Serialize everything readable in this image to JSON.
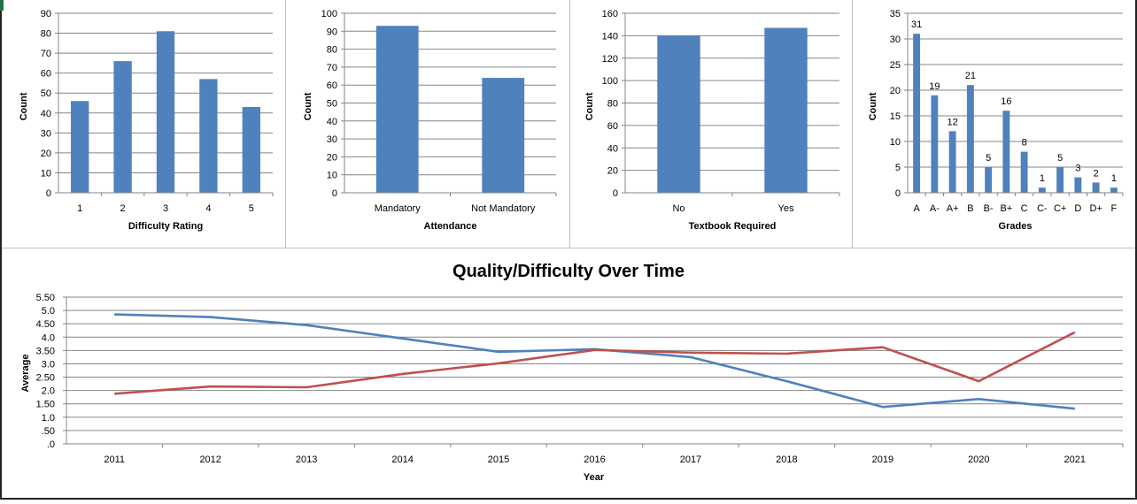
{
  "colors": {
    "bar": "#4f81bd",
    "grid": "#868686",
    "series_blue": "#4f81bd",
    "series_red": "#c0504d"
  },
  "chart_data": [
    {
      "type": "bar",
      "categories": [
        "1",
        "2",
        "3",
        "4",
        "5"
      ],
      "values": [
        46,
        66,
        81,
        57,
        43
      ],
      "xlabel": "Difficulty Rating",
      "ylabel": "Count",
      "ylim": [
        0,
        90
      ],
      "yticks": [
        "0",
        "10",
        "20",
        "30",
        "40",
        "50",
        "60",
        "70",
        "80",
        "90"
      ],
      "grid": true
    },
    {
      "type": "bar",
      "categories": [
        "Mandatory",
        "Not Mandatory"
      ],
      "values": [
        93,
        64
      ],
      "xlabel": "Attendance",
      "ylabel": "Count",
      "ylim": [
        0,
        100
      ],
      "yticks": [
        "0",
        "10",
        "20",
        "30",
        "40",
        "50",
        "60",
        "70",
        "80",
        "90",
        "100"
      ],
      "grid": true
    },
    {
      "type": "bar",
      "categories": [
        "No",
        "Yes"
      ],
      "values": [
        140,
        147
      ],
      "xlabel": "Textbook Required",
      "ylabel": "Count",
      "ylim": [
        0,
        160
      ],
      "yticks": [
        "0",
        "20",
        "40",
        "60",
        "80",
        "100",
        "120",
        "140",
        "160"
      ],
      "grid": true
    },
    {
      "type": "bar",
      "categories": [
        "A",
        "A-",
        "A+",
        "B",
        "B-",
        "B+",
        "C",
        "C-",
        "C+",
        "D",
        "D+",
        "F"
      ],
      "values": [
        31,
        19,
        12,
        21,
        5,
        16,
        8,
        1,
        5,
        3,
        2,
        1
      ],
      "data_labels": [
        "31",
        "19",
        "12",
        "21",
        "5",
        "16",
        "8",
        "1",
        "5",
        "3",
        "2",
        "1"
      ],
      "xlabel": "Grades",
      "ylabel": "Count",
      "ylim": [
        0,
        35
      ],
      "yticks": [
        "0",
        "5",
        "10",
        "15",
        "20",
        "25",
        "30",
        "35"
      ],
      "grid": true
    },
    {
      "type": "line",
      "title": "Quality/Difficulty Over Time",
      "x": [
        "2011",
        "2012",
        "2013",
        "2014",
        "2015",
        "2016",
        "2017",
        "2018",
        "2019",
        "2020",
        "2021"
      ],
      "series": [
        {
          "color": "#4f81bd",
          "values": [
            4.85,
            4.75,
            4.45,
            3.95,
            3.45,
            3.55,
            3.25,
            2.35,
            1.38,
            1.68,
            1.32
          ]
        },
        {
          "color": "#c0504d",
          "values": [
            1.88,
            2.15,
            2.12,
            2.62,
            3.02,
            3.52,
            3.42,
            3.38,
            3.62,
            2.35,
            4.18
          ]
        }
      ],
      "xlabel": "Year",
      "ylabel": "Average",
      "ylim": [
        0,
        5.5
      ],
      "yticks": [
        ".0",
        ".50",
        "1.0",
        "1.50",
        "2.0",
        "2.50",
        "3.0",
        "3.50",
        "4.0",
        "4.50",
        "5.0",
        "5.50"
      ],
      "grid": true
    }
  ]
}
